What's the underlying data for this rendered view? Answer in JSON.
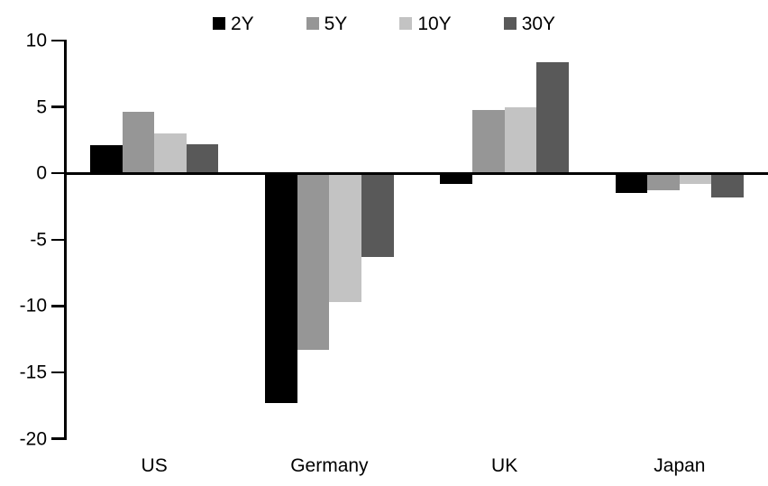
{
  "chart_data": {
    "type": "bar",
    "title": "",
    "xlabel": "",
    "ylabel": "",
    "categories": [
      "US",
      "Germany",
      "UK",
      "Japan"
    ],
    "series": [
      {
        "name": "2Y",
        "color": "#000000",
        "values": [
          2.1,
          -17.3,
          -0.8,
          -1.5
        ]
      },
      {
        "name": "5Y",
        "color": "#969696",
        "values": [
          4.6,
          -13.3,
          4.8,
          -1.3
        ]
      },
      {
        "name": "10Y",
        "color": "#c3c3c3",
        "values": [
          3.0,
          -9.7,
          5.0,
          -0.8
        ]
      },
      {
        "name": "30Y",
        "color": "#595959",
        "values": [
          2.2,
          -6.3,
          8.4,
          -1.8
        ]
      }
    ],
    "ylim": [
      -20,
      10
    ],
    "yticks": [
      10,
      5,
      0,
      -5,
      -10,
      -15,
      -20
    ],
    "grid": false,
    "legend_position": "top",
    "axis_color": "#000000",
    "background_color": "#ffffff"
  }
}
